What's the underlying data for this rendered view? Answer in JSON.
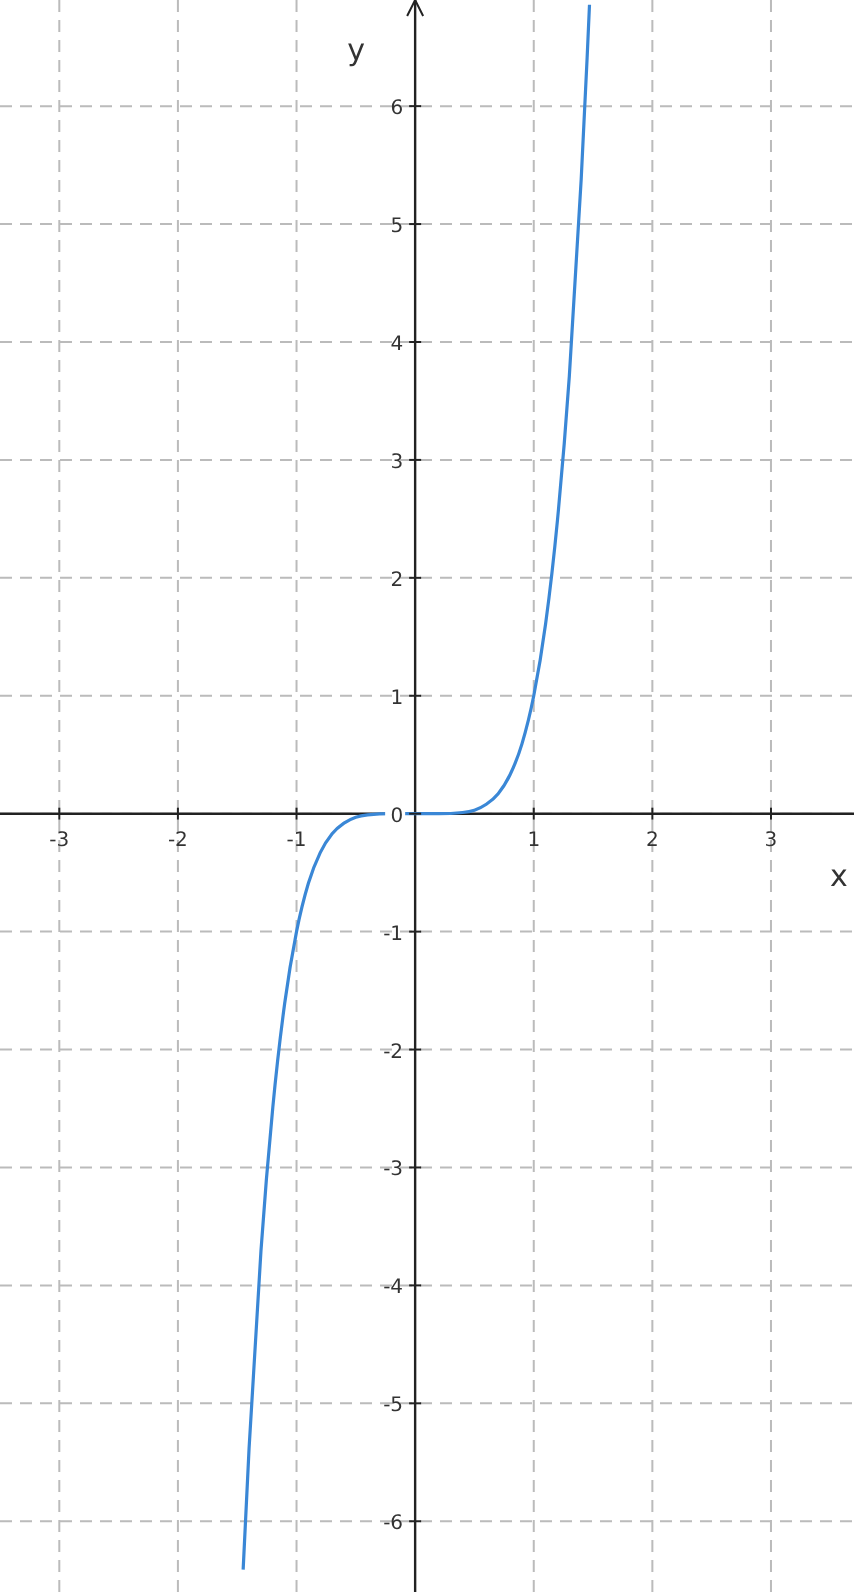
{
  "chart_data": {
    "type": "line",
    "xlabel": "x",
    "ylabel": "y",
    "x": [
      -1.45,
      -1.4,
      -1.3,
      -1.2,
      -1.1,
      -1.0,
      -0.9,
      -0.8,
      -0.7,
      -0.6,
      -0.5,
      -0.4,
      -0.2,
      0,
      0.2,
      0.4,
      0.5,
      0.6,
      0.7,
      0.8,
      0.9,
      1.0,
      1.1,
      1.2,
      1.3,
      1.4,
      1.45,
      1.47
    ],
    "series": [
      {
        "color": "#3a87d6",
        "values": [
          -6.41,
          -5.38,
          -3.71,
          -2.49,
          -1.61,
          -1,
          -0.59,
          -0.33,
          -0.17,
          -0.08,
          -0.03,
          -0.01,
          0,
          0,
          0,
          0.01,
          0.03,
          0.08,
          0.17,
          0.33,
          0.59,
          1,
          1.61,
          2.49,
          3.71,
          5.38,
          6.41,
          6.86
        ]
      }
    ],
    "xlim": [
      -3.5,
      3.7
    ],
    "ylim": [
      -6.6,
      6.9
    ],
    "xticks": [
      -3,
      -2,
      -1,
      1,
      2,
      3
    ],
    "yticks": [
      {
        "value": 0,
        "label": "0"
      },
      -6,
      -5,
      -4,
      -3,
      -2,
      -1,
      1,
      2,
      3,
      4,
      5,
      6
    ],
    "grid": true,
    "line_style": "solid",
    "marker": "none"
  }
}
